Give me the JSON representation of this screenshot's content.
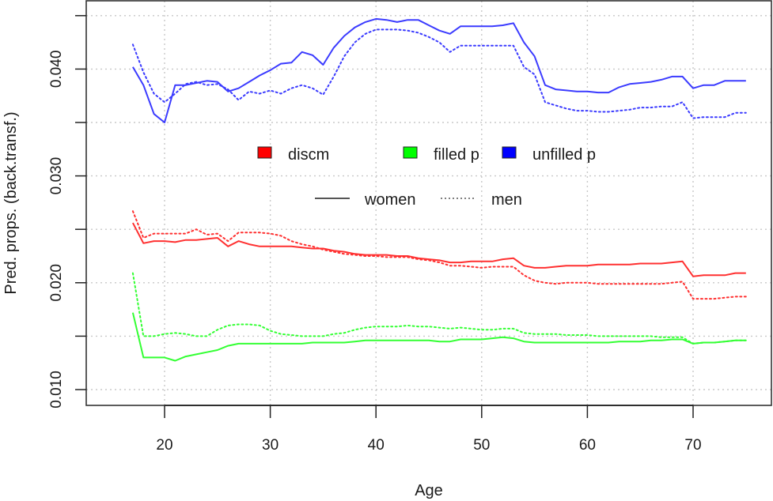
{
  "chart_data": {
    "type": "line",
    "title": "",
    "xlabel": "Age",
    "ylabel": "Pred. props. (back.transf.)",
    "xlim": [
      15.7,
      77.3
    ],
    "ylim": [
      0.0085,
      0.0465
    ],
    "x_ticks": [
      20,
      30,
      40,
      50,
      60,
      70
    ],
    "y_ticks": [
      0.01,
      0.015,
      0.02,
      0.025,
      0.03,
      0.035,
      0.04,
      0.045
    ],
    "y_tick_labels": [
      "0.010",
      "",
      "0.020",
      "",
      "0.030",
      "",
      "0.040",
      ""
    ],
    "x_tick_labels": [
      "20",
      "30",
      "40",
      "50",
      "60",
      "70"
    ],
    "grid": true,
    "legend_color": {
      "entries": [
        {
          "label": "discm",
          "color": "#ff0000"
        },
        {
          "label": "filled p",
          "color": "#00ff00"
        },
        {
          "label": "unfilled p",
          "color": "#0000ff"
        }
      ]
    },
    "legend_linetype": {
      "entries": [
        {
          "label": "women",
          "style": "solid"
        },
        {
          "label": "men",
          "style": "dotted"
        }
      ]
    },
    "x": [
      17,
      18,
      19,
      20,
      21,
      22,
      23,
      24,
      25,
      26,
      27,
      28,
      29,
      30,
      31,
      32,
      33,
      34,
      35,
      36,
      37,
      38,
      39,
      40,
      41,
      42,
      43,
      44,
      45,
      46,
      47,
      48,
      49,
      50,
      51,
      52,
      53,
      54,
      55,
      56,
      57,
      58,
      59,
      60,
      61,
      62,
      63,
      64,
      65,
      66,
      67,
      68,
      69,
      70,
      71,
      72,
      73,
      74,
      75
    ],
    "series": [
      {
        "name": "unfilled p - women",
        "group": "unfilled p",
        "sex": "women",
        "color": "#3b3bff",
        "dash": "solid",
        "values": [
          0.0402,
          0.0385,
          0.0358,
          0.035,
          0.0385,
          0.0385,
          0.0387,
          0.0389,
          0.0388,
          0.0379,
          0.0382,
          0.0388,
          0.0394,
          0.0399,
          0.0405,
          0.0406,
          0.0416,
          0.0413,
          0.0404,
          0.042,
          0.0431,
          0.0439,
          0.0444,
          0.0447,
          0.0446,
          0.0444,
          0.0446,
          0.0446,
          0.0441,
          0.0436,
          0.0433,
          0.044,
          0.044,
          0.044,
          0.044,
          0.0441,
          0.0443,
          0.0425,
          0.0412,
          0.0385,
          0.0381,
          0.038,
          0.0379,
          0.0379,
          0.0378,
          0.0378,
          0.0383,
          0.0386,
          0.0387,
          0.0388,
          0.039,
          0.0393,
          0.0393,
          0.0382,
          0.0385,
          0.0385,
          0.0389,
          0.0389,
          0.0389
        ]
      },
      {
        "name": "unfilled p - men",
        "group": "unfilled p",
        "sex": "men",
        "color": "#3b3bff",
        "dash": "dotted",
        "values": [
          0.0423,
          0.0397,
          0.0377,
          0.0369,
          0.0377,
          0.0386,
          0.0388,
          0.0385,
          0.0386,
          0.0381,
          0.0371,
          0.0379,
          0.0377,
          0.038,
          0.0377,
          0.0382,
          0.0385,
          0.0382,
          0.0376,
          0.0393,
          0.0412,
          0.0425,
          0.0433,
          0.0437,
          0.0437,
          0.0437,
          0.0436,
          0.0434,
          0.043,
          0.0425,
          0.0416,
          0.0422,
          0.0422,
          0.0422,
          0.0422,
          0.0422,
          0.0422,
          0.0402,
          0.0395,
          0.0369,
          0.0366,
          0.0363,
          0.0361,
          0.0361,
          0.036,
          0.036,
          0.0361,
          0.0362,
          0.0364,
          0.0364,
          0.0365,
          0.0365,
          0.0369,
          0.0354,
          0.0355,
          0.0355,
          0.0355,
          0.0359,
          0.0359
        ]
      },
      {
        "name": "discm - women",
        "group": "discm",
        "sex": "women",
        "color": "#ff3030",
        "dash": "solid",
        "values": [
          0.0256,
          0.0237,
          0.0239,
          0.0239,
          0.0238,
          0.024,
          0.024,
          0.0241,
          0.0242,
          0.0234,
          0.0239,
          0.0236,
          0.0234,
          0.0234,
          0.0234,
          0.0234,
          0.0233,
          0.0232,
          0.0232,
          0.023,
          0.0229,
          0.0227,
          0.0226,
          0.0226,
          0.0226,
          0.0225,
          0.0225,
          0.0223,
          0.0222,
          0.0221,
          0.0219,
          0.0219,
          0.022,
          0.022,
          0.022,
          0.0222,
          0.0223,
          0.0216,
          0.0214,
          0.0214,
          0.0215,
          0.0216,
          0.0216,
          0.0216,
          0.0217,
          0.0217,
          0.0217,
          0.0217,
          0.0218,
          0.0218,
          0.0218,
          0.0219,
          0.022,
          0.0206,
          0.0207,
          0.0207,
          0.0207,
          0.0209,
          0.0209
        ]
      },
      {
        "name": "discm - men",
        "group": "discm",
        "sex": "men",
        "color": "#ff3030",
        "dash": "dotted",
        "values": [
          0.0267,
          0.0242,
          0.0246,
          0.0246,
          0.0246,
          0.0246,
          0.025,
          0.0245,
          0.0246,
          0.0239,
          0.0247,
          0.0247,
          0.0247,
          0.0246,
          0.0244,
          0.0239,
          0.0236,
          0.0234,
          0.0231,
          0.0229,
          0.0227,
          0.0226,
          0.0225,
          0.0225,
          0.0224,
          0.0224,
          0.0224,
          0.0222,
          0.0221,
          0.0219,
          0.0216,
          0.0216,
          0.0215,
          0.0214,
          0.0215,
          0.0215,
          0.0215,
          0.0207,
          0.0202,
          0.02,
          0.0199,
          0.02,
          0.02,
          0.02,
          0.0199,
          0.0199,
          0.0199,
          0.0199,
          0.0199,
          0.0199,
          0.0199,
          0.02,
          0.0201,
          0.0185,
          0.0185,
          0.0185,
          0.0186,
          0.0187,
          0.0187
        ]
      },
      {
        "name": "filled p - women",
        "group": "filled p",
        "sex": "women",
        "color": "#33ff33",
        "dash": "solid",
        "values": [
          0.0172,
          0.013,
          0.013,
          0.013,
          0.0127,
          0.0131,
          0.0133,
          0.0135,
          0.0137,
          0.0141,
          0.0143,
          0.0143,
          0.0143,
          0.0143,
          0.0143,
          0.0143,
          0.0143,
          0.0144,
          0.0144,
          0.0144,
          0.0144,
          0.0145,
          0.0146,
          0.0146,
          0.0146,
          0.0146,
          0.0146,
          0.0146,
          0.0146,
          0.0145,
          0.0145,
          0.0147,
          0.0147,
          0.0147,
          0.0148,
          0.0149,
          0.0148,
          0.0145,
          0.0144,
          0.0144,
          0.0144,
          0.0144,
          0.0144,
          0.0144,
          0.0144,
          0.0144,
          0.0145,
          0.0145,
          0.0145,
          0.0146,
          0.0146,
          0.0147,
          0.0147,
          0.0143,
          0.0144,
          0.0144,
          0.0145,
          0.0146,
          0.0146
        ]
      },
      {
        "name": "filled p - men",
        "group": "filled p",
        "sex": "men",
        "color": "#33ff33",
        "dash": "dotted",
        "values": [
          0.0209,
          0.015,
          0.015,
          0.0152,
          0.0153,
          0.0152,
          0.015,
          0.015,
          0.0156,
          0.016,
          0.0161,
          0.0161,
          0.016,
          0.0155,
          0.0152,
          0.0151,
          0.015,
          0.015,
          0.015,
          0.0152,
          0.0153,
          0.0156,
          0.0158,
          0.0159,
          0.0159,
          0.0159,
          0.016,
          0.0159,
          0.0159,
          0.0158,
          0.0157,
          0.0158,
          0.0157,
          0.0156,
          0.0156,
          0.0157,
          0.0157,
          0.0153,
          0.0152,
          0.0152,
          0.0152,
          0.0151,
          0.0151,
          0.0151,
          0.015,
          0.015,
          0.015,
          0.015,
          0.015,
          0.015,
          0.0149,
          0.0149,
          0.0149,
          0.0143,
          0.0144,
          0.0144,
          0.0145,
          0.0146,
          0.0146
        ]
      }
    ]
  }
}
